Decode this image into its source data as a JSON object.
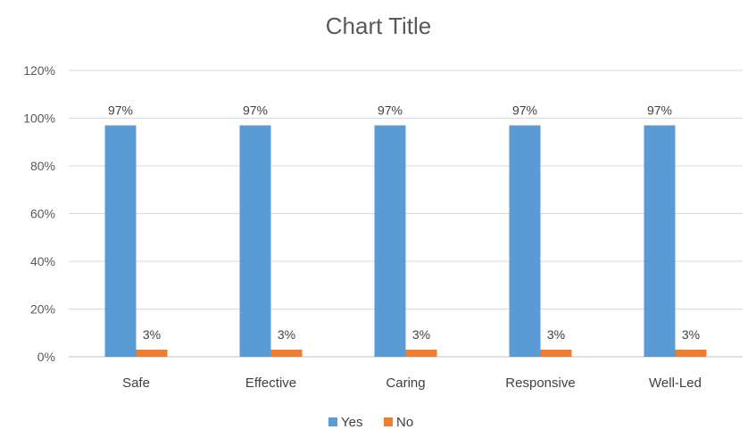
{
  "chart_data": {
    "type": "bar",
    "title": "Chart Title",
    "categories": [
      "Safe",
      "Effective",
      "Caring",
      "Responsive",
      "Well-Led"
    ],
    "series": [
      {
        "name": "Yes",
        "color": "#5B9BD5",
        "values": [
          97,
          97,
          97,
          97,
          97
        ],
        "labels": [
          "97%",
          "97%",
          "97%",
          "97%",
          "97%"
        ]
      },
      {
        "name": "No",
        "color": "#ED7D31",
        "values": [
          3,
          3,
          3,
          3,
          3
        ],
        "labels": [
          "3%",
          "3%",
          "3%",
          "3%",
          "3%"
        ]
      }
    ],
    "ylim": [
      0,
      120
    ],
    "yticks": [
      0,
      20,
      40,
      60,
      80,
      100,
      120
    ],
    "ytick_labels": [
      "0%",
      "20%",
      "40%",
      "60%",
      "80%",
      "100%",
      "120%"
    ],
    "grid": true,
    "legend": "bottom"
  }
}
